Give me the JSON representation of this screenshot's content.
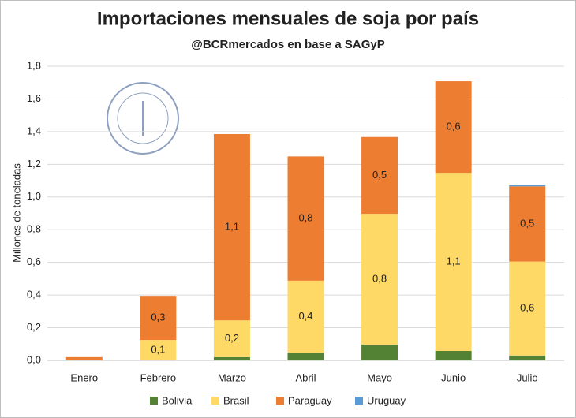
{
  "chart_data": {
    "type": "stacked_bar",
    "title": "Importaciones mensuales de soja por país",
    "subtitle": "@BCRmercados en base a SAGyP",
    "y_label": "Millones de toneladas",
    "categories": [
      "Enero",
      "Febrero",
      "Marzo",
      "Abril",
      "Mayo",
      "Junio",
      "Julio"
    ],
    "series": [
      {
        "name": "Bolivia",
        "color": "#548235",
        "values": [
          0,
          0,
          0.02,
          0.048,
          0.097,
          0.058,
          0.03
        ]
      },
      {
        "name": "Brasil",
        "color": "#ffd966",
        "values": [
          0,
          0.125,
          0.225,
          0.44,
          0.8,
          1.09,
          0.575
        ],
        "value_labels": [
          null,
          "0,1",
          "0,2",
          "0,4",
          "0,8",
          "1,1",
          "0,6"
        ]
      },
      {
        "name": "Paraguay",
        "color": "#ed7d31",
        "values": [
          0.02,
          0.27,
          1.14,
          0.76,
          0.47,
          0.56,
          0.46
        ],
        "value_labels": [
          null,
          "0,3",
          "1,1",
          "0,8",
          "0,5",
          "0,6",
          "0,5"
        ]
      },
      {
        "name": "Uruguay",
        "color": "#5b9bd5",
        "values": [
          0,
          0,
          0,
          0,
          0,
          0,
          0.01
        ]
      }
    ],
    "ylim": [
      0,
      1.8
    ],
    "yticks": [
      {
        "value": 0,
        "label": "0,0"
      },
      {
        "value": 0.2,
        "label": "0,2"
      },
      {
        "value": 0.4,
        "label": "0,4"
      },
      {
        "value": 0.6,
        "label": "0,6"
      },
      {
        "value": 0.8,
        "label": "0,8"
      },
      {
        "value": 1,
        "label": "1,0"
      },
      {
        "value": 1.2,
        "label": "1,2"
      },
      {
        "value": 1.4,
        "label": "1,4"
      },
      {
        "value": 1.6,
        "label": "1,6"
      },
      {
        "value": 1.8,
        "label": "1,8"
      }
    ],
    "grid": true
  }
}
